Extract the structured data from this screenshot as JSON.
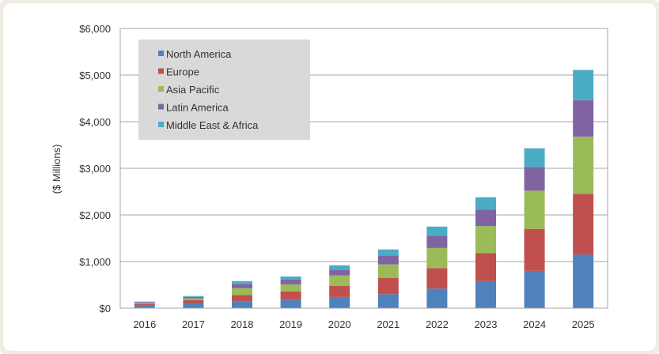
{
  "chart_data": {
    "type": "bar",
    "stacked": true,
    "title": "",
    "xlabel": "",
    "ylabel": "($ Millions)",
    "ylim": [
      0,
      6000
    ],
    "yticks": [
      0,
      1000,
      2000,
      3000,
      4000,
      5000,
      6000
    ],
    "ytick_labels": [
      "$0",
      "$1,000",
      "$2,000",
      "$3,000",
      "$4,000",
      "$5,000",
      "$6,000"
    ],
    "grid": true,
    "legend_position": "top-left",
    "categories": [
      "2016",
      "2017",
      "2018",
      "2019",
      "2020",
      "2021",
      "2022",
      "2023",
      "2024",
      "2025"
    ],
    "series": [
      {
        "name": "North America",
        "color": "#4f81bd",
        "values": [
          60,
          110,
          140,
          180,
          240,
          300,
          420,
          580,
          800,
          1150
        ]
      },
      {
        "name": "Europe",
        "color": "#c0504d",
        "values": [
          30,
          60,
          140,
          180,
          240,
          350,
          440,
          600,
          900,
          1300
        ]
      },
      {
        "name": "Asia Pacific",
        "color": "#9bbb59",
        "values": [
          20,
          40,
          150,
          150,
          220,
          290,
          430,
          580,
          820,
          1230
        ]
      },
      {
        "name": "Latin America",
        "color": "#8064a2",
        "values": [
          20,
          30,
          90,
          100,
          120,
          190,
          260,
          350,
          510,
          780
        ]
      },
      {
        "name": "Middle East & Africa",
        "color": "#4bacc6",
        "values": [
          10,
          20,
          60,
          70,
          100,
          130,
          200,
          270,
          400,
          650
        ]
      }
    ]
  }
}
